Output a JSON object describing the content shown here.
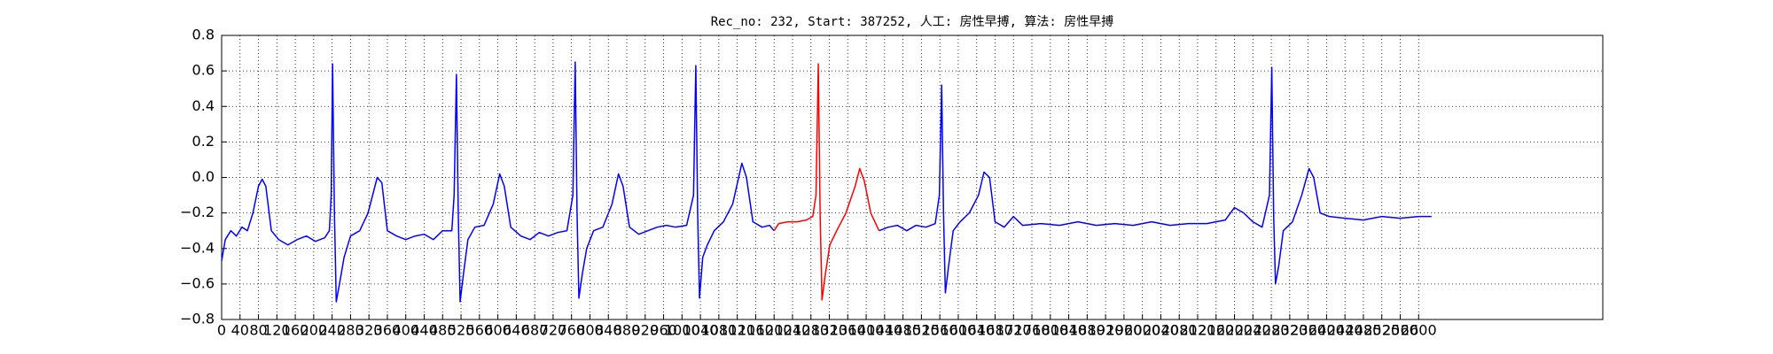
{
  "chart_data": {
    "type": "line",
    "title": "Rec_no: 232, Start: 387252, 人工: 房性早搏, 算法: 房性早搏",
    "xlim": [
      0,
      3000
    ],
    "xticks": [
      0,
      40,
      80,
      120,
      160,
      200,
      240,
      280,
      320,
      360,
      400,
      440,
      480,
      520,
      560,
      600,
      640,
      680,
      720,
      760,
      800,
      840,
      880,
      920,
      960,
      1000,
      1040,
      1080,
      1120,
      1160,
      1200,
      1240,
      1280,
      1320,
      1360,
      1400,
      1440,
      1480,
      1520,
      1560,
      1600,
      1640,
      1680,
      1720,
      1760,
      1800,
      1840,
      1880,
      1920,
      1960,
      2000,
      2040,
      2080,
      2120,
      2160,
      2200,
      2240,
      2280,
      2320,
      2360,
      2400,
      2440,
      2480,
      2520,
      2560,
      2600
    ],
    "ylim": [
      -0.8,
      0.8
    ],
    "yticks": [
      {
        "value": -0.8,
        "label": "−0.8"
      },
      {
        "value": -0.6,
        "label": "−0.6"
      },
      {
        "value": -0.4,
        "label": "−0.4"
      },
      {
        "value": -0.2,
        "label": "−0.2"
      },
      {
        "value": 0,
        "label": "0.0"
      },
      0.2,
      0.4,
      0.6,
      0.8
    ],
    "grid": true,
    "series": [
      {
        "color": "#0000ff",
        "x": [
          0,
          8,
          20,
          32,
          44,
          56,
          68,
          80,
          88,
          96,
          108,
          124,
          144,
          164,
          184,
          204,
          224,
          234,
          238,
          241,
          245,
          249,
          256,
          266,
          280,
          300,
          318,
          338,
          348,
          360,
          380,
          400,
          420,
          440,
          460,
          480,
          500,
          505,
          510,
          514,
          518,
          525,
          535,
          550,
          570,
          590,
          604,
          614,
          628,
          650,
          670,
          690,
          710,
          730,
          750,
          763,
          768,
          772,
          776,
          783,
          793,
          808,
          828,
          848,
          862,
          872,
          886,
          906,
          926,
          946,
          966,
          986,
          1010,
          1025,
          1030,
          1034,
          1038,
          1045,
          1055,
          1070,
          1090,
          1110,
          1130,
          1140,
          1154,
          1174,
          1190,
          1200,
          1300,
          1428,
          1448,
          1468,
          1488,
          1508,
          1530,
          1550,
          1559,
          1564,
          1568,
          1572,
          1579,
          1589,
          1604,
          1624,
          1644,
          1656,
          1668,
          1680,
          1700,
          1720,
          1740,
          1780,
          1820,
          1860,
          1900,
          1940,
          1980,
          2020,
          2060,
          2100,
          2140,
          2180,
          2200,
          2220,
          2240,
          2260,
          2276,
          2281,
          2285,
          2289,
          2296,
          2306,
          2326,
          2346,
          2362,
          2372,
          2386,
          2406,
          2440,
          2480,
          2520,
          2560,
          2600,
          2628
        ],
        "values": [
          -0.47,
          -0.35,
          -0.3,
          -0.33,
          -0.28,
          -0.3,
          -0.2,
          -0.05,
          -0.01,
          -0.05,
          -0.3,
          -0.35,
          -0.38,
          -0.35,
          -0.33,
          -0.36,
          -0.34,
          -0.3,
          -0.1,
          0.64,
          -0.2,
          -0.7,
          -0.6,
          -0.45,
          -0.33,
          -0.3,
          -0.2,
          0,
          -0.03,
          -0.3,
          -0.33,
          -0.35,
          -0.33,
          -0.32,
          -0.35,
          -0.3,
          -0.3,
          -0.1,
          0.58,
          -0.2,
          -0.7,
          -0.55,
          -0.35,
          -0.28,
          -0.27,
          -0.15,
          0.02,
          -0.05,
          -0.28,
          -0.33,
          -0.35,
          -0.31,
          -0.33,
          -0.31,
          -0.3,
          -0.1,
          0.65,
          -0.2,
          -0.68,
          -0.55,
          -0.4,
          -0.3,
          -0.28,
          -0.15,
          0.02,
          -0.05,
          -0.28,
          -0.32,
          -0.3,
          -0.28,
          -0.27,
          -0.28,
          -0.27,
          -0.1,
          0.63,
          -0.2,
          -0.68,
          -0.45,
          -0.38,
          -0.3,
          -0.25,
          -0.15,
          0.08,
          0,
          -0.25,
          -0.28,
          -0.27,
          -0.3,
          null,
          -0.3,
          -0.28,
          -0.27,
          -0.3,
          -0.27,
          -0.28,
          -0.26,
          -0.1,
          0.52,
          -0.2,
          -0.65,
          -0.5,
          -0.3,
          -0.25,
          -0.2,
          -0.1,
          0.03,
          0,
          -0.25,
          -0.28,
          -0.22,
          -0.27,
          -0.26,
          -0.27,
          -0.25,
          -0.27,
          -0.26,
          -0.27,
          -0.25,
          -0.27,
          -0.26,
          -0.26,
          -0.24,
          -0.17,
          -0.2,
          -0.25,
          -0.28,
          -0.1,
          0.62,
          -0.2,
          -0.6,
          -0.5,
          -0.3,
          -0.25,
          -0.1,
          0.05,
          0,
          -0.2,
          -0.22,
          -0.23,
          -0.24,
          -0.22,
          -0.23,
          -0.22,
          -0.22
        ]
      },
      {
        "color": "#ff0000",
        "x": [
          1200,
          1210,
          1230,
          1250,
          1270,
          1284,
          1291,
          1296,
          1300,
          1304,
          1311,
          1321,
          1336,
          1356,
          1376,
          1386,
          1396,
          1410,
          1428
        ],
        "values": [
          -0.3,
          -0.26,
          -0.25,
          -0.25,
          -0.24,
          -0.22,
          -0.1,
          0.64,
          -0.2,
          -0.69,
          -0.55,
          -0.38,
          -0.3,
          -0.2,
          -0.05,
          0.05,
          -0.02,
          -0.2,
          -0.3
        ]
      }
    ]
  }
}
